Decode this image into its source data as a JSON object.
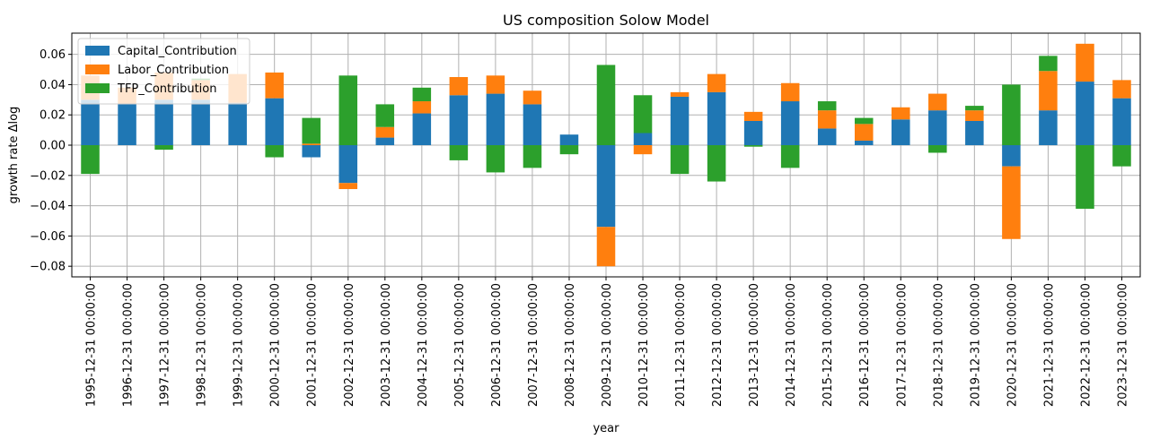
{
  "chart_data": {
    "type": "bar",
    "stacked": true,
    "title": "US composition Solow Model",
    "xlabel": "year",
    "ylabel": "growth rate Δlog",
    "ylim": [
      -0.087,
      0.074
    ],
    "yticks": [
      -0.08,
      -0.06,
      -0.04,
      -0.02,
      0.0,
      0.02,
      0.04,
      0.06
    ],
    "ytick_labels": [
      "−0.08",
      "−0.06",
      "−0.04",
      "−0.02",
      "0.00",
      "0.02",
      "0.04",
      "0.06"
    ],
    "grid": true,
    "legend_position": "top-left",
    "categories": [
      "1995-12-31 00:00:00",
      "1996-12-31 00:00:00",
      "1997-12-31 00:00:00",
      "1998-12-31 00:00:00",
      "1999-12-31 00:00:00",
      "2000-12-31 00:00:00",
      "2001-12-31 00:00:00",
      "2002-12-31 00:00:00",
      "2003-12-31 00:00:00",
      "2004-12-31 00:00:00",
      "2005-12-31 00:00:00",
      "2006-12-31 00:00:00",
      "2007-12-31 00:00:00",
      "2008-12-31 00:00:00",
      "2009-12-31 00:00:00",
      "2010-12-31 00:00:00",
      "2011-12-31 00:00:00",
      "2012-12-31 00:00:00",
      "2013-12-31 00:00:00",
      "2014-12-31 00:00:00",
      "2015-12-31 00:00:00",
      "2016-12-31 00:00:00",
      "2017-12-31 00:00:00",
      "2018-12-31 00:00:00",
      "2019-12-31 00:00:00",
      "2020-12-31 00:00:00",
      "2021-12-31 00:00:00",
      "2022-12-31 00:00:00",
      "2023-12-31 00:00:00"
    ],
    "series": [
      {
        "name": "Capital_Contribution",
        "color": "#1f77b4",
        "values": [
          0.03,
          0.027,
          0.03,
          0.03,
          0.028,
          0.031,
          -0.008,
          -0.025,
          0.005,
          0.021,
          0.033,
          0.034,
          0.027,
          0.007,
          -0.054,
          0.008,
          0.032,
          0.035,
          0.016,
          0.029,
          0.011,
          0.003,
          0.017,
          0.023,
          0.016,
          -0.014,
          0.023,
          0.042,
          0.031
        ]
      },
      {
        "name": "Labor_Contribution",
        "color": "#ff7f0e",
        "values": [
          0.016,
          0.011,
          0.018,
          0.013,
          0.019,
          0.017,
          0.001,
          -0.004,
          0.007,
          0.008,
          0.012,
          0.012,
          0.009,
          0.0,
          -0.026,
          -0.006,
          0.003,
          0.012,
          0.006,
          0.012,
          0.012,
          0.011,
          0.008,
          0.011,
          0.007,
          -0.048,
          0.026,
          0.025,
          0.012
        ]
      },
      {
        "name": "TFP_Contribution",
        "color": "#2ca02c",
        "values": [
          -0.019,
          0.0,
          -0.003,
          0.001,
          0.0,
          -0.008,
          0.017,
          0.046,
          0.015,
          0.009,
          -0.01,
          -0.018,
          -0.015,
          -0.006,
          0.053,
          0.025,
          -0.019,
          -0.024,
          -0.001,
          -0.015,
          0.006,
          0.004,
          0.0,
          -0.005,
          0.003,
          0.04,
          0.01,
          -0.042,
          -0.014
        ]
      }
    ]
  }
}
